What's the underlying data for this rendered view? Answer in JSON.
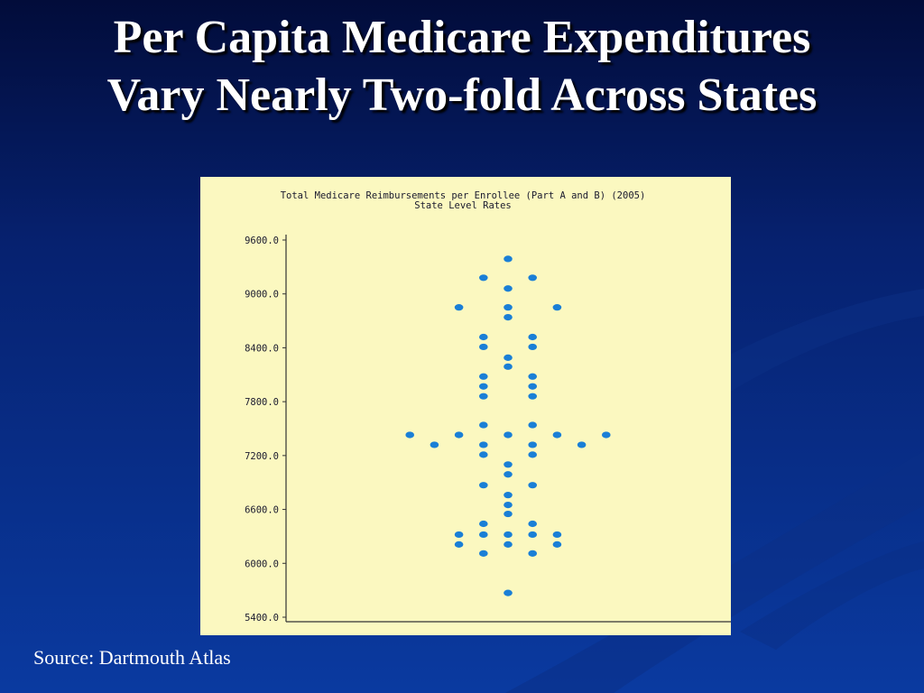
{
  "slide": {
    "title_line1": "Per Capita Medicare Expenditures",
    "title_line2": "Vary Nearly Two-fold Across States",
    "source": "Source: Dartmouth Atlas"
  },
  "colors": {
    "background": "#06216f",
    "panel": "#fbf8c0",
    "marker": "#1a7fd6"
  },
  "chart_data": {
    "type": "scatter",
    "title": "Total Medicare Reimbursements per Enrollee (Part A and B) (2005)",
    "subtitle": "State Level Rates",
    "xlabel": "",
    "ylabel": "",
    "ylim": [
      5400,
      9600
    ],
    "yticks": [
      "9600.0",
      "9000.0",
      "8400.0",
      "7800.0",
      "7200.0",
      "6600.0",
      "6000.0",
      "5400.0"
    ],
    "grid": false,
    "layout_style": "dot plot (values spread horizontally to avoid overlap)",
    "points": [
      {
        "x": 0,
        "y": 9390
      },
      {
        "x": -1,
        "y": 9180
      },
      {
        "x": 1,
        "y": 9180
      },
      {
        "x": 0,
        "y": 9060
      },
      {
        "x": -2,
        "y": 8850
      },
      {
        "x": 0,
        "y": 8850
      },
      {
        "x": 2,
        "y": 8850
      },
      {
        "x": 0,
        "y": 8740
      },
      {
        "x": -1,
        "y": 8520
      },
      {
        "x": 1,
        "y": 8520
      },
      {
        "x": -1,
        "y": 8410
      },
      {
        "x": 1,
        "y": 8410
      },
      {
        "x": 0,
        "y": 8290
      },
      {
        "x": 0,
        "y": 8190
      },
      {
        "x": -1,
        "y": 8080
      },
      {
        "x": 1,
        "y": 8080
      },
      {
        "x": -1,
        "y": 7970
      },
      {
        "x": 1,
        "y": 7970
      },
      {
        "x": -1,
        "y": 7860
      },
      {
        "x": 1,
        "y": 7860
      },
      {
        "x": -1,
        "y": 7540
      },
      {
        "x": 1,
        "y": 7540
      },
      {
        "x": -4,
        "y": 7430
      },
      {
        "x": -2,
        "y": 7430
      },
      {
        "x": 0,
        "y": 7430
      },
      {
        "x": 2,
        "y": 7430
      },
      {
        "x": 4,
        "y": 7430
      },
      {
        "x": -3,
        "y": 7320
      },
      {
        "x": -1,
        "y": 7320
      },
      {
        "x": 1,
        "y": 7320
      },
      {
        "x": 3,
        "y": 7320
      },
      {
        "x": -1,
        "y": 7210
      },
      {
        "x": 1,
        "y": 7210
      },
      {
        "x": 0,
        "y": 7100
      },
      {
        "x": 0,
        "y": 6990
      },
      {
        "x": -1,
        "y": 6870
      },
      {
        "x": 1,
        "y": 6870
      },
      {
        "x": 0,
        "y": 6760
      },
      {
        "x": 0,
        "y": 6650
      },
      {
        "x": 0,
        "y": 6550
      },
      {
        "x": -1,
        "y": 6440
      },
      {
        "x": 1,
        "y": 6440
      },
      {
        "x": -2,
        "y": 6320
      },
      {
        "x": -1,
        "y": 6320
      },
      {
        "x": 0,
        "y": 6320
      },
      {
        "x": 1,
        "y": 6320
      },
      {
        "x": 2,
        "y": 6320
      },
      {
        "x": -2,
        "y": 6210
      },
      {
        "x": 0,
        "y": 6210
      },
      {
        "x": 2,
        "y": 6210
      },
      {
        "x": -1,
        "y": 6110
      },
      {
        "x": 1,
        "y": 6110
      },
      {
        "x": 0,
        "y": 5670
      }
    ]
  }
}
